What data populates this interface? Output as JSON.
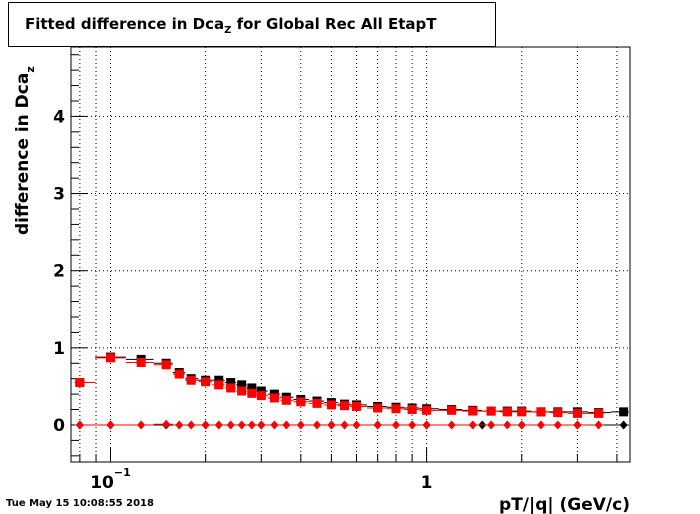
{
  "title": {
    "main": "Fitted difference in Dca",
    "sub": "Z",
    "rest": " for Global Rec All EtapT"
  },
  "timestamp": "Tue May 15 10:08:55 2018",
  "colors": {
    "series_a": "#000000",
    "series_b": "#ff0000",
    "grid": "#000000"
  },
  "chart_data": {
    "type": "scatter",
    "xscale": "log",
    "xlim": [
      0.075,
      4.4
    ],
    "ylim": [
      -0.48,
      4.9
    ],
    "xlabel": "pT/|q| (GeV/c)",
    "ylabel": "difference in Dca_z",
    "ylabel_main": "difference in Dca",
    "ylabel_sub": "z",
    "grid": true,
    "x_tick_labels": [
      {
        "value": 0.1,
        "label": "10",
        "exp": "−1"
      },
      {
        "value": 1,
        "label": "1",
        "exp": ""
      }
    ],
    "y_tick_labels": [
      {
        "value": 0,
        "label": "0"
      },
      {
        "value": 1,
        "label": "1"
      },
      {
        "value": 2,
        "label": "2"
      },
      {
        "value": 3,
        "label": "3"
      },
      {
        "value": 4,
        "label": "4"
      }
    ],
    "series": [
      {
        "marker": "square",
        "color": "#000000",
        "x": [
          0.08,
          0.1,
          0.125,
          0.15,
          0.165,
          0.18,
          0.2,
          0.22,
          0.24,
          0.26,
          0.28,
          0.3,
          0.33,
          0.36,
          0.4,
          0.45,
          0.5,
          0.55,
          0.6,
          0.7,
          0.8,
          0.9,
          1.0,
          1.2,
          1.4,
          1.6,
          1.8,
          2.0,
          2.3,
          2.6,
          3.0,
          3.5,
          4.2
        ],
        "y": [
          0.55,
          0.88,
          0.85,
          0.8,
          0.68,
          0.6,
          0.58,
          0.58,
          0.55,
          0.52,
          0.48,
          0.44,
          0.4,
          0.36,
          0.33,
          0.31,
          0.29,
          0.27,
          0.26,
          0.24,
          0.23,
          0.22,
          0.21,
          0.2,
          0.19,
          0.18,
          0.18,
          0.18,
          0.17,
          0.17,
          0.17,
          0.16,
          0.17
        ]
      },
      {
        "marker": "square",
        "color": "#ff0000",
        "x": [
          0.08,
          0.1,
          0.125,
          0.15,
          0.165,
          0.18,
          0.2,
          0.22,
          0.24,
          0.26,
          0.28,
          0.3,
          0.33,
          0.36,
          0.4,
          0.45,
          0.5,
          0.55,
          0.6,
          0.7,
          0.8,
          0.9,
          1.0,
          1.2,
          1.4,
          1.6,
          1.8,
          2.0,
          2.3,
          2.6,
          3.0,
          3.5
        ],
        "y": [
          0.55,
          0.87,
          0.81,
          0.78,
          0.66,
          0.58,
          0.56,
          0.52,
          0.48,
          0.44,
          0.41,
          0.38,
          0.35,
          0.32,
          0.3,
          0.28,
          0.26,
          0.25,
          0.24,
          0.22,
          0.21,
          0.2,
          0.19,
          0.19,
          0.18,
          0.18,
          0.17,
          0.17,
          0.17,
          0.16,
          0.15,
          0.15
        ]
      },
      {
        "marker": "diamond",
        "color": "#000000",
        "x": [
          0.08,
          0.1,
          0.15,
          0.2,
          0.3,
          0.5,
          0.7,
          1.0,
          1.5,
          2.0,
          3.0,
          4.2
        ],
        "y": [
          0.0,
          0.0,
          0.0,
          0.0,
          0.0,
          0.0,
          0.0,
          0.0,
          0.0,
          0.0,
          0.0,
          0.0
        ]
      },
      {
        "marker": "diamond",
        "color": "#ff0000",
        "x": [
          0.08,
          0.1,
          0.125,
          0.15,
          0.165,
          0.18,
          0.2,
          0.22,
          0.24,
          0.26,
          0.28,
          0.3,
          0.33,
          0.36,
          0.4,
          0.45,
          0.5,
          0.55,
          0.6,
          0.7,
          0.8,
          0.9,
          1.0,
          1.2,
          1.4,
          1.6,
          1.8,
          2.0,
          2.3,
          2.6,
          3.0,
          3.5
        ],
        "y": [
          0.0,
          0.0,
          0.0,
          0.01,
          0.0,
          0.0,
          0.0,
          0.0,
          0.0,
          0.0,
          0.0,
          0.0,
          0.0,
          0.0,
          0.0,
          0.0,
          0.0,
          0.0,
          0.0,
          0.0,
          0.0,
          0.0,
          0.0,
          0.0,
          0.0,
          0.0,
          0.0,
          0.0,
          0.0,
          0.0,
          0.0,
          0.0
        ]
      }
    ]
  }
}
